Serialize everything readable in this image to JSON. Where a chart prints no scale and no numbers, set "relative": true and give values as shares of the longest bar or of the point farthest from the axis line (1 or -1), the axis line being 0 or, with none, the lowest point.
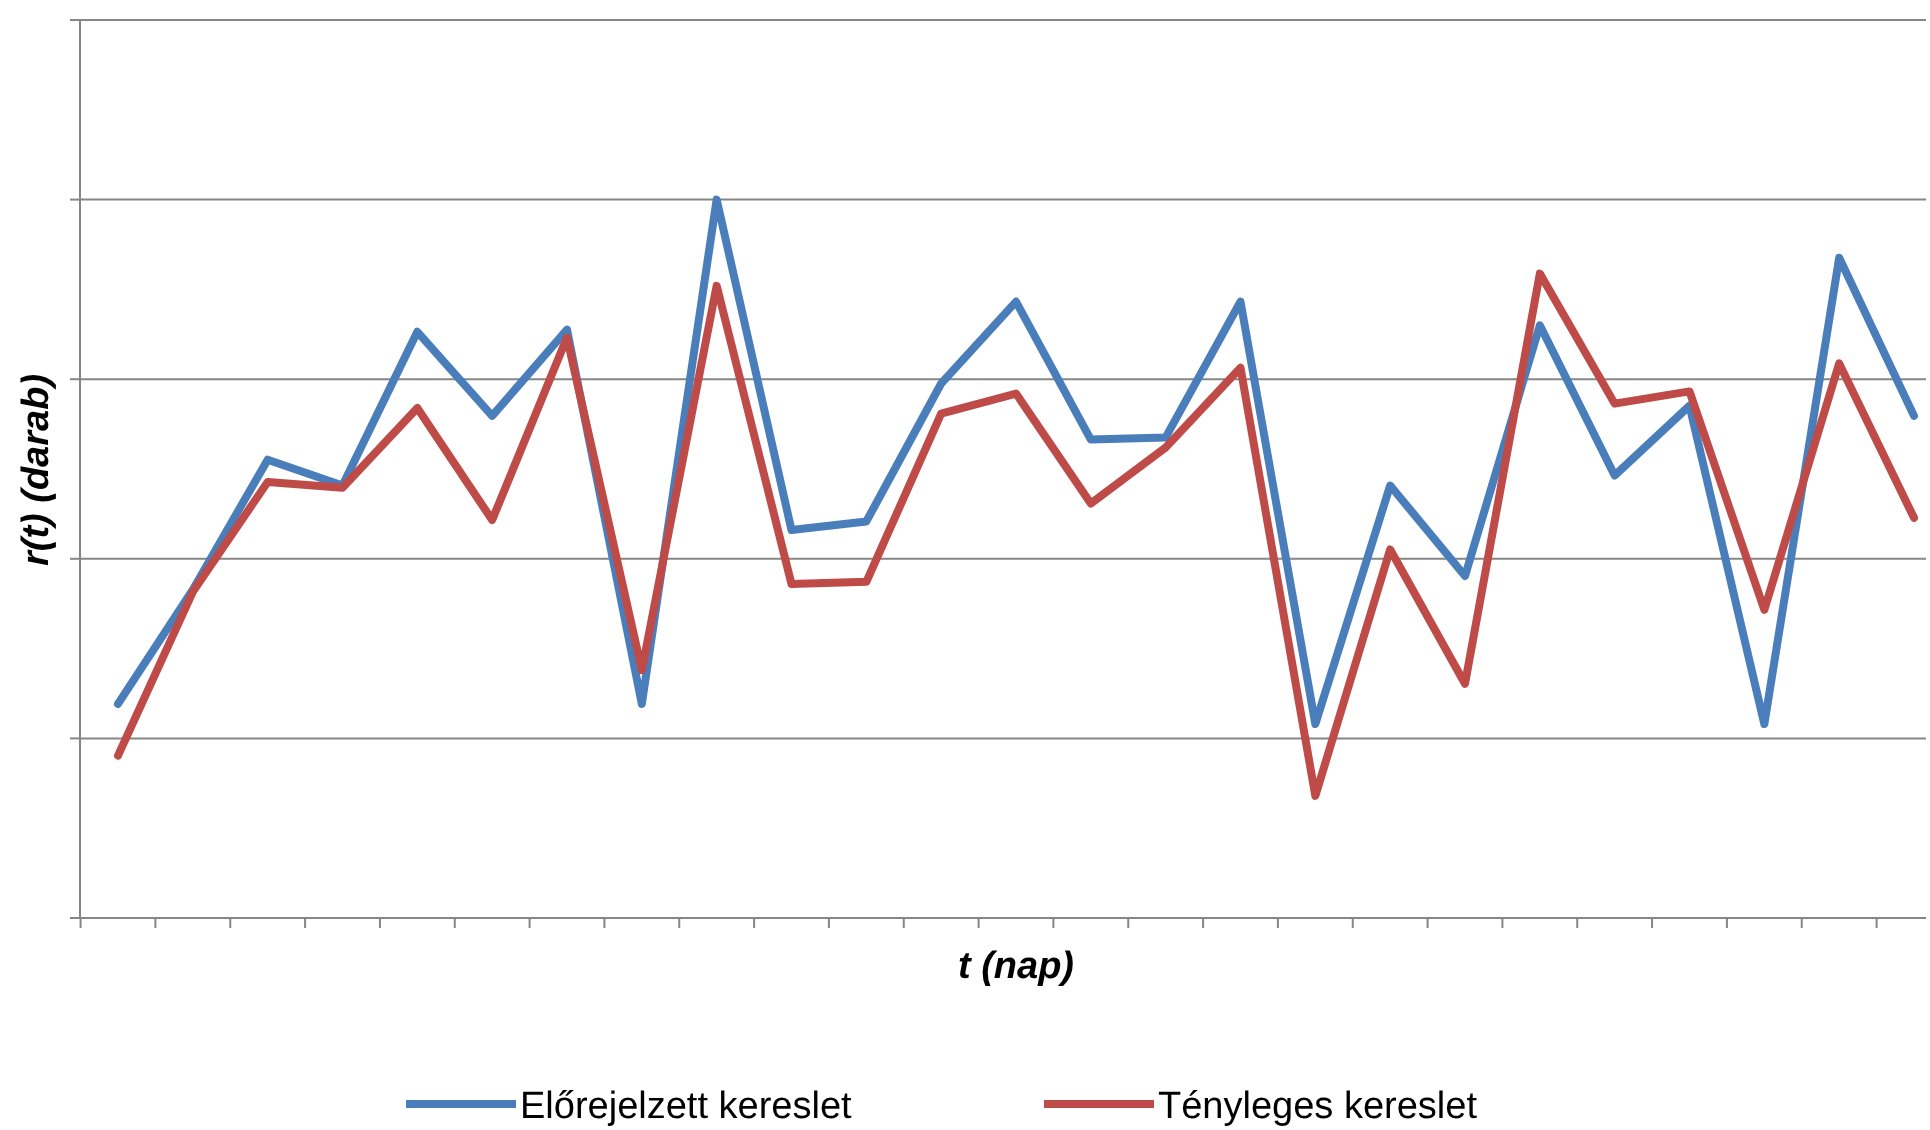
{
  "chart_data": {
    "type": "line",
    "relative": true,
    "xlabel": "t (nap)",
    "ylabel": "r(t) (darab)",
    "grid": "y",
    "legend": "bottom",
    "line_style": "solid",
    "categories": [
      null,
      null,
      null,
      null,
      null,
      null,
      null,
      null,
      null,
      null,
      null,
      null,
      null,
      null,
      null,
      null,
      null,
      null,
      null,
      null,
      null,
      null,
      null,
      null,
      null
    ],
    "series": [
      {
        "name": "Előrejelzett kereslet",
        "color": "#4a7ebb",
        "values": [
          0.298,
          0.457,
          0.638,
          0.602,
          0.816,
          0.699,
          0.819,
          0.298,
          1,
          0.54,
          0.552,
          0.744,
          0.858,
          0.666,
          0.669,
          0.858,
          0.27,
          0.602,
          0.476,
          0.825,
          0.616,
          0.713,
          0.27,
          0.919,
          0.699
        ]
      },
      {
        "name": "Tényleges kereslet",
        "color": "#be4b48",
        "values": [
          0.226,
          0.454,
          0.607,
          0.599,
          0.71,
          0.554,
          0.808,
          0.345,
          0.88,
          0.465,
          0.468,
          0.702,
          0.73,
          0.577,
          0.655,
          0.766,
          0.17,
          0.513,
          0.326,
          0.897,
          0.716,
          0.733,
          0.429,
          0.772,
          0.557
        ]
      }
    ]
  }
}
